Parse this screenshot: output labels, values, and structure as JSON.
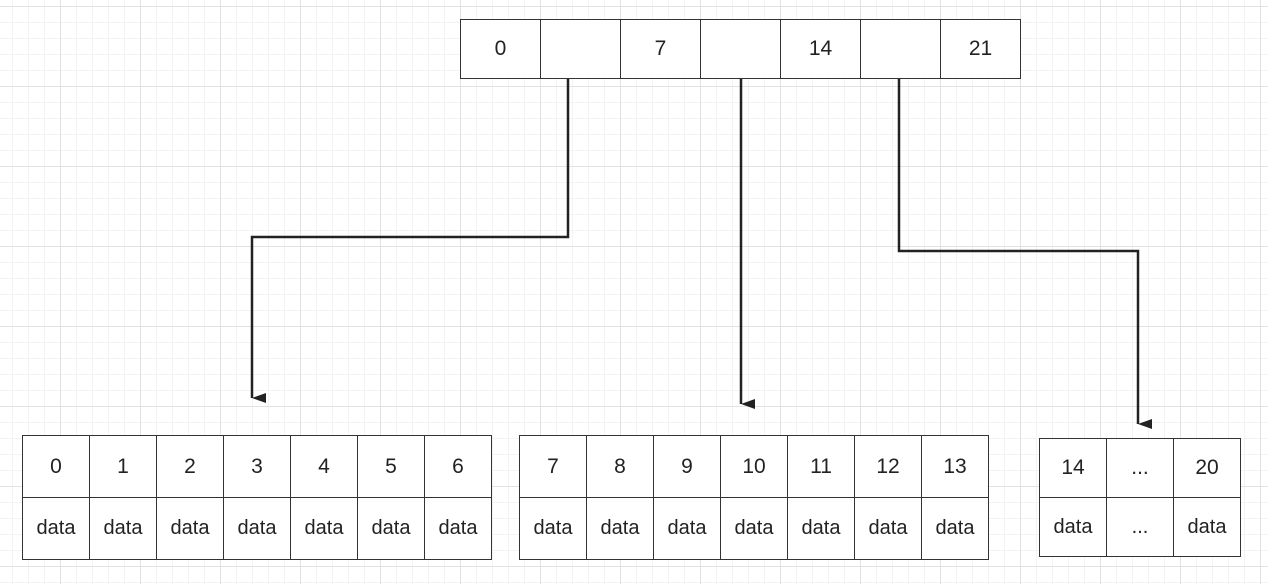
{
  "index_table": {
    "cells": [
      "0",
      "",
      "7",
      "",
      "14",
      "",
      "21"
    ]
  },
  "pages": [
    {
      "keys": [
        "0",
        "1",
        "2",
        "3",
        "4",
        "5",
        "6"
      ],
      "values": [
        "data",
        "data",
        "data",
        "data",
        "data",
        "data",
        "data"
      ]
    },
    {
      "keys": [
        "7",
        "8",
        "9",
        "10",
        "11",
        "12",
        "13"
      ],
      "values": [
        "data",
        "data",
        "data",
        "data",
        "data",
        "data",
        "data"
      ]
    },
    {
      "keys": [
        "14",
        "...",
        "20"
      ],
      "values": [
        "data",
        "...",
        "data"
      ]
    }
  ],
  "colors": {
    "line": "#333333",
    "grid": "#e2e2e2"
  }
}
